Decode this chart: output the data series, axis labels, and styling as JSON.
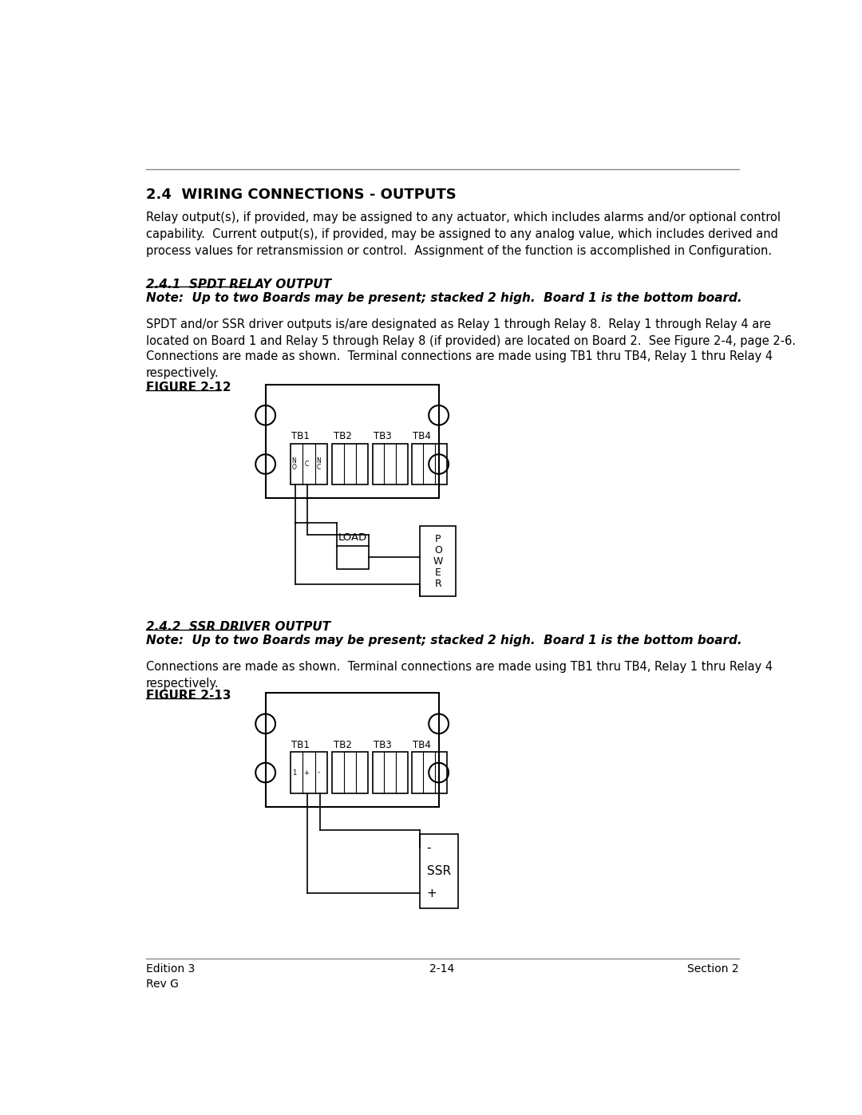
{
  "page_title": "2.4  WIRING CONNECTIONS - OUTPUTS",
  "body_text_1": "Relay output(s), if provided, may be assigned to any actuator, which includes alarms and/or optional control\ncapability.  Current output(s), if provided, may be assigned to any analog value, which includes derived and\nprocess values for retransmission or control.  Assignment of the function is accomplished in Configuration.",
  "section_241_title": "2.4.1  SPDT RELAY OUTPUT",
  "section_241_note": "Note:  Up to two Boards may be present; stacked 2 high.  Board 1 is the bottom board.",
  "section_241_body1": "SPDT and/or SSR driver outputs is/are designated as Relay 1 through Relay 8.  Relay 1 through Relay 4 are\nlocated on Board 1 and Relay 5 through Relay 8 (if provided) are located on Board 2.  See Figure 2-4, page 2-6.",
  "section_241_body2": "Connections are made as shown.  Terminal connections are made using TB1 thru TB4, Relay 1 thru Relay 4\nrespectively.",
  "figure_212_label": "FIGURE 2-12",
  "section_242_title": "2.4.2  SSR DRIVER OUTPUT",
  "section_242_note": "Note:  Up to two Boards may be present; stacked 2 high.  Board 1 is the bottom board.",
  "section_242_body": "Connections are made as shown.  Terminal connections are made using TB1 thru TB4, Relay 1 thru Relay 4\nrespectively.",
  "figure_213_label": "FIGURE 2-13",
  "footer_left": "Edition 3\nRev G",
  "footer_center": "2-14",
  "footer_right": "Section 2",
  "bg_color": "#ffffff",
  "text_color": "#000000"
}
